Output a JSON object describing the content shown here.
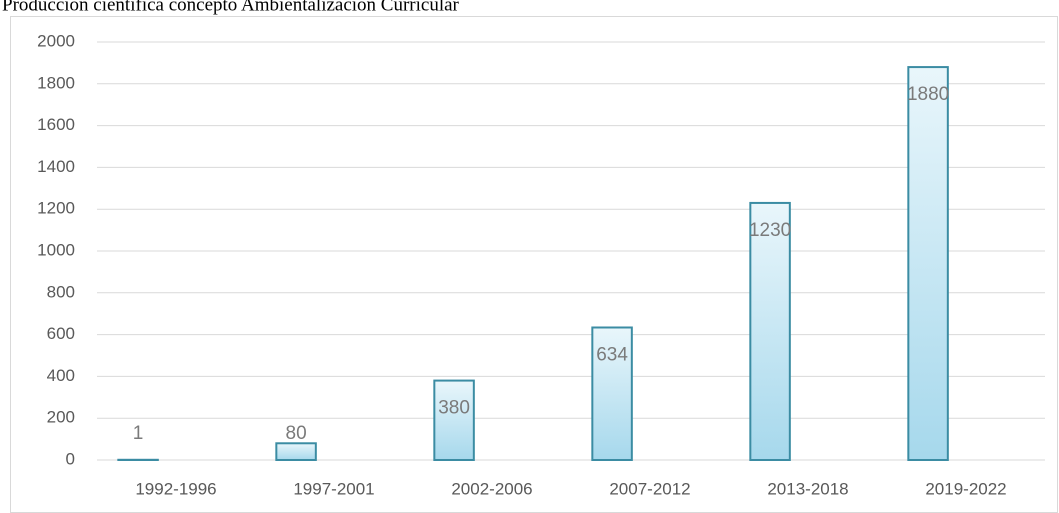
{
  "chart_data": {
    "type": "bar",
    "title": "Producción científica concepto Ambientalización Curricular",
    "categories": [
      "1992-1996",
      "1997-2001",
      "2002-2006",
      "2007-2012",
      "2013-2018",
      "2019-2022"
    ],
    "values": [
      1,
      80,
      380,
      634,
      1230,
      1880
    ],
    "color": "#3b8ca3",
    "ylim": [
      0,
      2000
    ],
    "yticks": [
      0,
      200,
      400,
      600,
      800,
      1000,
      1200,
      1400,
      1600,
      1800,
      2000
    ],
    "grid": true
  }
}
